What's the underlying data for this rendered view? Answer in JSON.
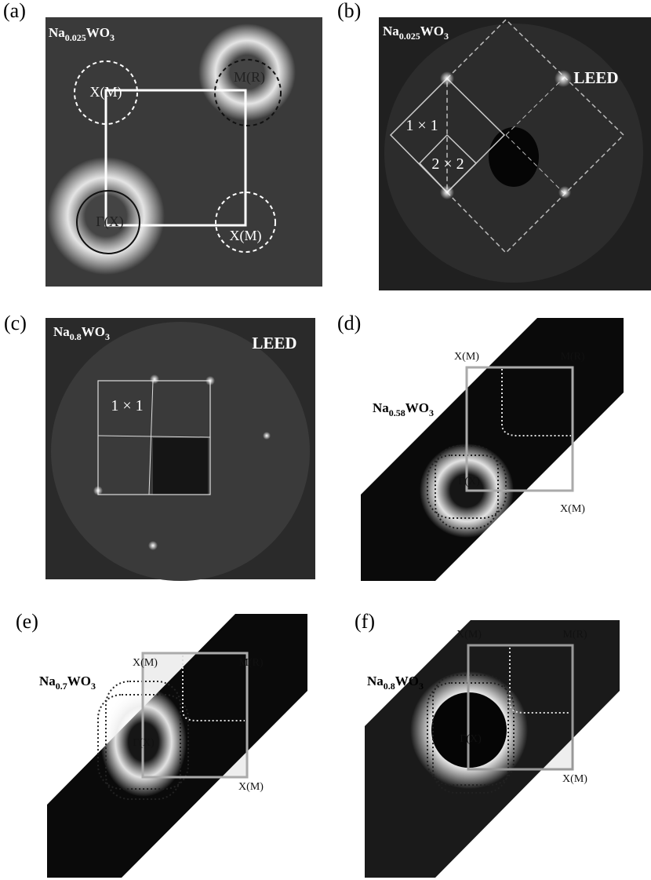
{
  "panels": [
    {
      "label": "(a)",
      "formula": [
        "Na",
        "0.025",
        "WO",
        "3"
      ],
      "annotations": [
        "X(M)",
        "M(R)",
        "Γ(X)",
        "X(M)"
      ]
    },
    {
      "label": "(b)",
      "formula": [
        "Na",
        "0.025",
        "WO",
        "3"
      ],
      "annotations": [
        "LEED",
        "1 × 1",
        "2 × 2"
      ]
    },
    {
      "label": "(c)",
      "formula": [
        "Na",
        "0.8",
        "WO",
        "3"
      ],
      "annotations": [
        "LEED",
        "1 × 1"
      ]
    },
    {
      "label": "(d)",
      "formula": [
        "Na",
        "0.58",
        "WO",
        "3"
      ],
      "annotations": [
        "X(M)",
        "M(R)",
        "Γ(X)",
        "X(M)"
      ]
    },
    {
      "label": "(e)",
      "formula": [
        "Na",
        "0.7",
        "WO",
        "3"
      ],
      "annotations": [
        "X(M)",
        "M(R)",
        "Γ(X)",
        "X(M)"
      ]
    },
    {
      "label": "(f)",
      "formula": [
        "Na",
        "0.8",
        "WO",
        "3"
      ],
      "annotations": [
        "X(M)",
        "M(R)",
        "Γ(X)",
        "X(M)"
      ]
    }
  ]
}
